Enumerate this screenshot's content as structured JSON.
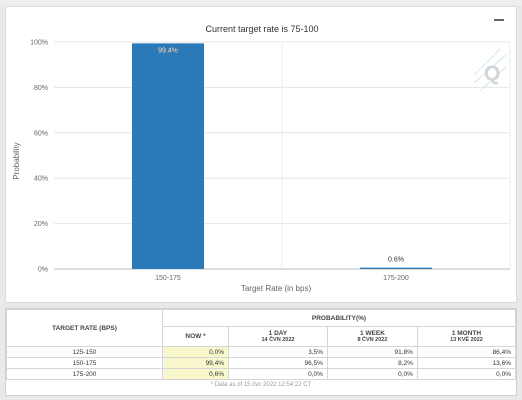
{
  "chart_data": {
    "type": "bar",
    "title": "Current target rate is 75-100",
    "xlabel": "Target Rate (in bps)",
    "ylabel": "Probability",
    "categories": [
      "150-175",
      "175-200"
    ],
    "values": [
      99.4,
      0.6
    ],
    "value_labels": [
      "99.4%",
      "0.6%"
    ],
    "ylim": [
      0,
      100
    ],
    "yticks": [
      "0%",
      "20%",
      "40%",
      "60%",
      "80%",
      "100%"
    ],
    "bar_color": "#2a7ab9",
    "grid": true,
    "legend": "none"
  },
  "watermark": "Q",
  "table": {
    "rate_header": "TARGET RATE (BPS)",
    "group_header": "PROBABILITY(%)",
    "columns": [
      {
        "label": "NOW *",
        "date": ""
      },
      {
        "label": "1 DAY",
        "date": "14 ČVN 2022"
      },
      {
        "label": "1 WEEK",
        "date": "8 ČVN 2022"
      },
      {
        "label": "1 MONTH",
        "date": "13 KVĚ 2022"
      }
    ],
    "rows": [
      {
        "rate": "125-150",
        "values": [
          "0,0%",
          "3,5%",
          "91,8%",
          "86,4%"
        ]
      },
      {
        "rate": "150-175",
        "values": [
          "99,4%",
          "96,5%",
          "8,2%",
          "13,6%"
        ]
      },
      {
        "rate": "175-200",
        "values": [
          "0,6%",
          "0,0%",
          "0,0%",
          "0,0%"
        ]
      }
    ],
    "footnote": "* Data as of 15 čvn 2022 12:54:22 CT"
  }
}
